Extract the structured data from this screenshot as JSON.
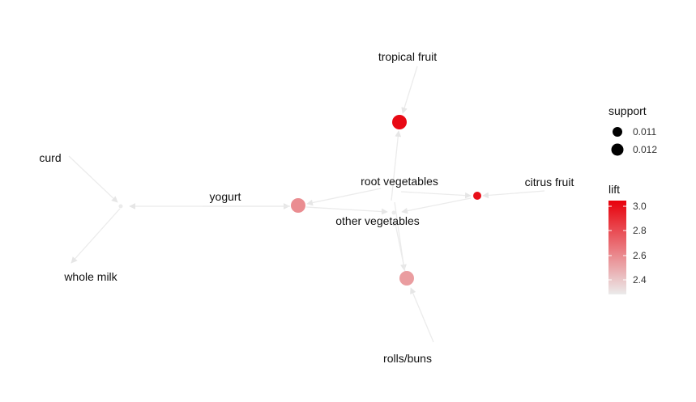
{
  "items": {
    "tropical_fruit": "tropical fruit",
    "curd": "curd",
    "yogurt": "yogurt",
    "root_vegetables": "root vegetables",
    "citrus_fruit": "citrus fruit",
    "other_vegetables": "other vegetables",
    "whole_milk": "whole milk",
    "rolls_buns": "rolls/buns"
  },
  "legend": {
    "support_title": "support",
    "support_values": [
      "0.011",
      "0.012"
    ],
    "lift_title": "lift",
    "lift_ticks": [
      "3.0",
      "2.8",
      "2.6",
      "2.4"
    ],
    "lift_range": [
      2.3,
      3.05
    ],
    "lift_colors": {
      "low": "#ebebeb",
      "high": "#e8000b"
    }
  },
  "rules": [
    {
      "id": "rule-1",
      "lift": 3.02,
      "support": 0.012
    },
    {
      "id": "rule-2",
      "lift": 2.6,
      "support": 0.012
    },
    {
      "id": "rule-3",
      "lift": 3.0,
      "support": 0.011
    },
    {
      "id": "rule-4",
      "lift": 2.55,
      "support": 0.012
    }
  ]
}
